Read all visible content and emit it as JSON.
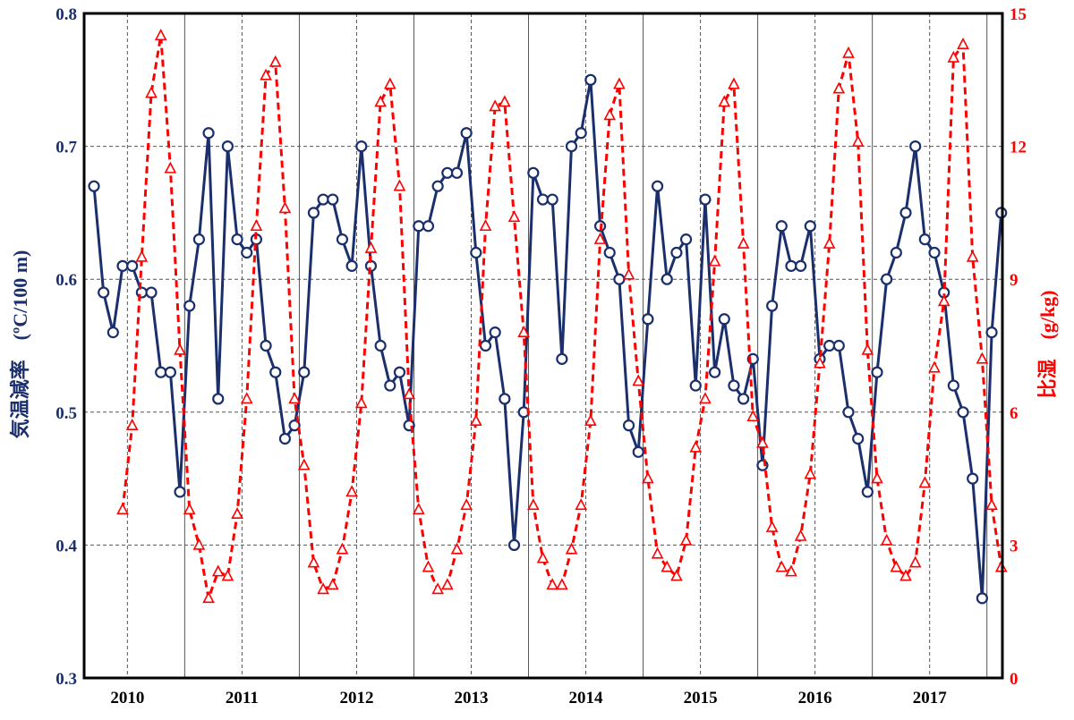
{
  "chart_data": {
    "type": "line",
    "x_tick_labels": [
      "2010",
      "2011",
      "2012",
      "2013",
      "2014",
      "2015",
      "2016",
      "2017"
    ],
    "x_range_months": [
      "2009-09",
      "2017-08"
    ],
    "y_left": {
      "label": "気温減率　(ºC/100 m)",
      "ticks": [
        "0.3",
        "0.4",
        "0.5",
        "0.6",
        "0.7",
        "0.8"
      ],
      "range": [
        0.3,
        0.8
      ]
    },
    "y_right": {
      "label": "比湿　(g/kg)",
      "ticks": [
        "0",
        "3",
        "6",
        "9",
        "12",
        "15"
      ],
      "range": [
        0,
        15
      ]
    },
    "grid": true,
    "series": [
      {
        "axis": "left",
        "color": "#1a2f6b",
        "style": "solid",
        "marker": "circle",
        "start_month": "2009-09",
        "values": [
          0.67,
          0.59,
          0.56,
          0.61,
          0.61,
          0.59,
          0.59,
          0.53,
          0.53,
          0.44,
          0.58,
          0.63,
          0.71,
          0.51,
          0.7,
          0.63,
          0.62,
          0.63,
          0.55,
          0.53,
          0.48,
          0.49,
          0.53,
          0.65,
          0.66,
          0.66,
          0.63,
          0.61,
          0.7,
          0.61,
          0.55,
          0.52,
          0.53,
          0.49,
          0.64,
          0.64,
          0.67,
          0.68,
          0.68,
          0.71,
          0.62,
          0.55,
          0.56,
          0.51,
          0.4,
          0.5,
          0.68,
          0.66,
          0.66,
          0.54,
          0.7,
          0.71,
          0.75,
          0.64,
          0.62,
          0.6,
          0.49,
          0.47,
          0.57,
          0.67,
          0.6,
          0.62,
          0.63,
          0.52,
          0.66,
          0.53,
          0.57,
          0.52,
          0.51,
          0.54,
          0.46,
          0.58,
          0.64,
          0.61,
          0.61,
          0.64,
          0.54,
          0.55,
          0.55,
          0.5,
          0.48,
          0.44,
          0.53,
          0.6,
          0.62,
          0.65,
          0.7,
          0.63,
          0.62,
          0.59,
          0.52,
          0.5,
          0.45,
          0.36,
          0.56,
          0.65
        ]
      },
      {
        "axis": "right",
        "color": "#ff0000",
        "style": "dashed",
        "marker": "triangle",
        "start_month": "2009-12",
        "values": [
          3.8,
          5.7,
          9.5,
          13.2,
          14.5,
          11.5,
          7.4,
          3.8,
          3.0,
          1.8,
          2.4,
          2.3,
          3.7,
          6.3,
          10.2,
          13.6,
          13.9,
          10.6,
          6.3,
          4.8,
          2.6,
          2.0,
          2.1,
          2.9,
          4.2,
          6.2,
          9.7,
          13.0,
          13.4,
          11.1,
          6.4,
          3.8,
          2.5,
          2.0,
          2.1,
          2.9,
          3.9,
          5.8,
          10.2,
          12.9,
          13.0,
          10.4,
          7.8,
          3.9,
          2.7,
          2.1,
          2.1,
          2.9,
          3.9,
          5.8,
          9.9,
          12.7,
          13.4,
          9.1,
          6.7,
          4.5,
          2.8,
          2.5,
          2.3,
          3.1,
          5.2,
          6.3,
          9.4,
          13.0,
          13.4,
          9.8,
          5.9,
          5.3,
          3.4,
          2.5,
          2.4,
          3.2,
          4.6,
          7.1,
          9.8,
          13.3,
          14.1,
          12.1,
          7.4,
          4.5,
          3.1,
          2.5,
          2.3,
          2.6,
          4.4,
          7.0,
          8.5,
          14.0,
          14.3,
          9.5,
          7.2,
          3.9,
          2.5
        ]
      }
    ]
  }
}
